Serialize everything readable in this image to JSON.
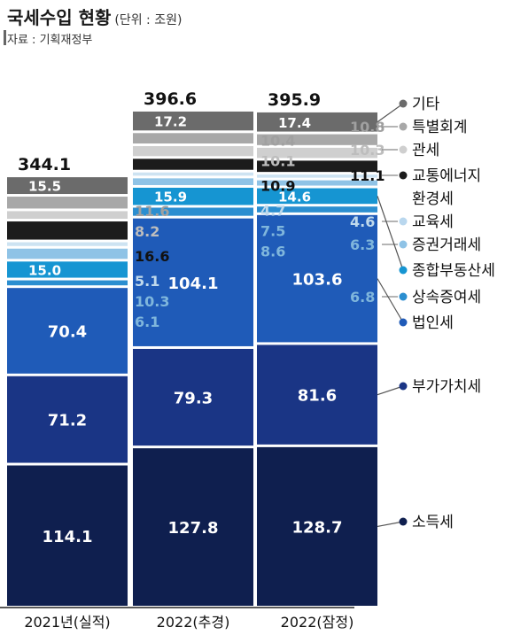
{
  "title": "국세수입 현황",
  "subtitle": "(단위 : 조원)",
  "source": "자료 : 기획재정부",
  "chart_data": {
    "type": "bar",
    "stacked": true,
    "unit": "조원",
    "categories": [
      "2021년(실적)",
      "2022(추경)",
      "2022(잠정)"
    ],
    "totals": [
      344.1,
      396.6,
      395.9
    ],
    "series": [
      {
        "name": "소득세",
        "color": "#0f1f4f",
        "label_color": "#ffffff",
        "values": [
          114.1,
          127.8,
          128.7
        ]
      },
      {
        "name": "부가가치세",
        "color": "#1a3585",
        "label_color": "#ffffff",
        "values": [
          71.2,
          79.3,
          81.6
        ]
      },
      {
        "name": "법인세",
        "color": "#1f5bb8",
        "label_color": "#ffffff",
        "values": [
          70.4,
          104.1,
          103.6
        ]
      },
      {
        "name": "상속증여세",
        "color": "#2b8ed0",
        "label_color": "#7fb6dc",
        "values": [
          6.1,
          8.6,
          6.8
        ]
      },
      {
        "name": "종합부동산세",
        "color": "#1695d2",
        "label_color": "#ffffff",
        "values": [
          15.0,
          15.9,
          14.6
        ]
      },
      {
        "name": "증권거래세",
        "color": "#8fc3e6",
        "label_color": "#7fb6dc",
        "values": [
          10.3,
          7.5,
          6.3
        ]
      },
      {
        "name": "교육세",
        "color": "#cde3f2",
        "label_color": "#bfd9ec",
        "values": [
          5.1,
          4.7,
          4.6
        ]
      },
      {
        "name": "교통에너지환경세",
        "color": "#1c1c1c",
        "label_color": "#111111",
        "values": [
          16.6,
          10.9,
          11.1
        ]
      },
      {
        "name": "관세",
        "color": "#cfcfcf",
        "label_color": "#bdbdbd",
        "values": [
          8.2,
          10.1,
          10.3
        ]
      },
      {
        "name": "특별회계",
        "color": "#a8a8a8",
        "label_color": "#a0a0a0",
        "values": [
          11.6,
          10.4,
          10.8
        ]
      },
      {
        "name": "기타",
        "color": "#6b6b6b",
        "label_color": "#ffffff",
        "values": [
          15.5,
          17.2,
          17.4
        ]
      }
    ]
  }
}
